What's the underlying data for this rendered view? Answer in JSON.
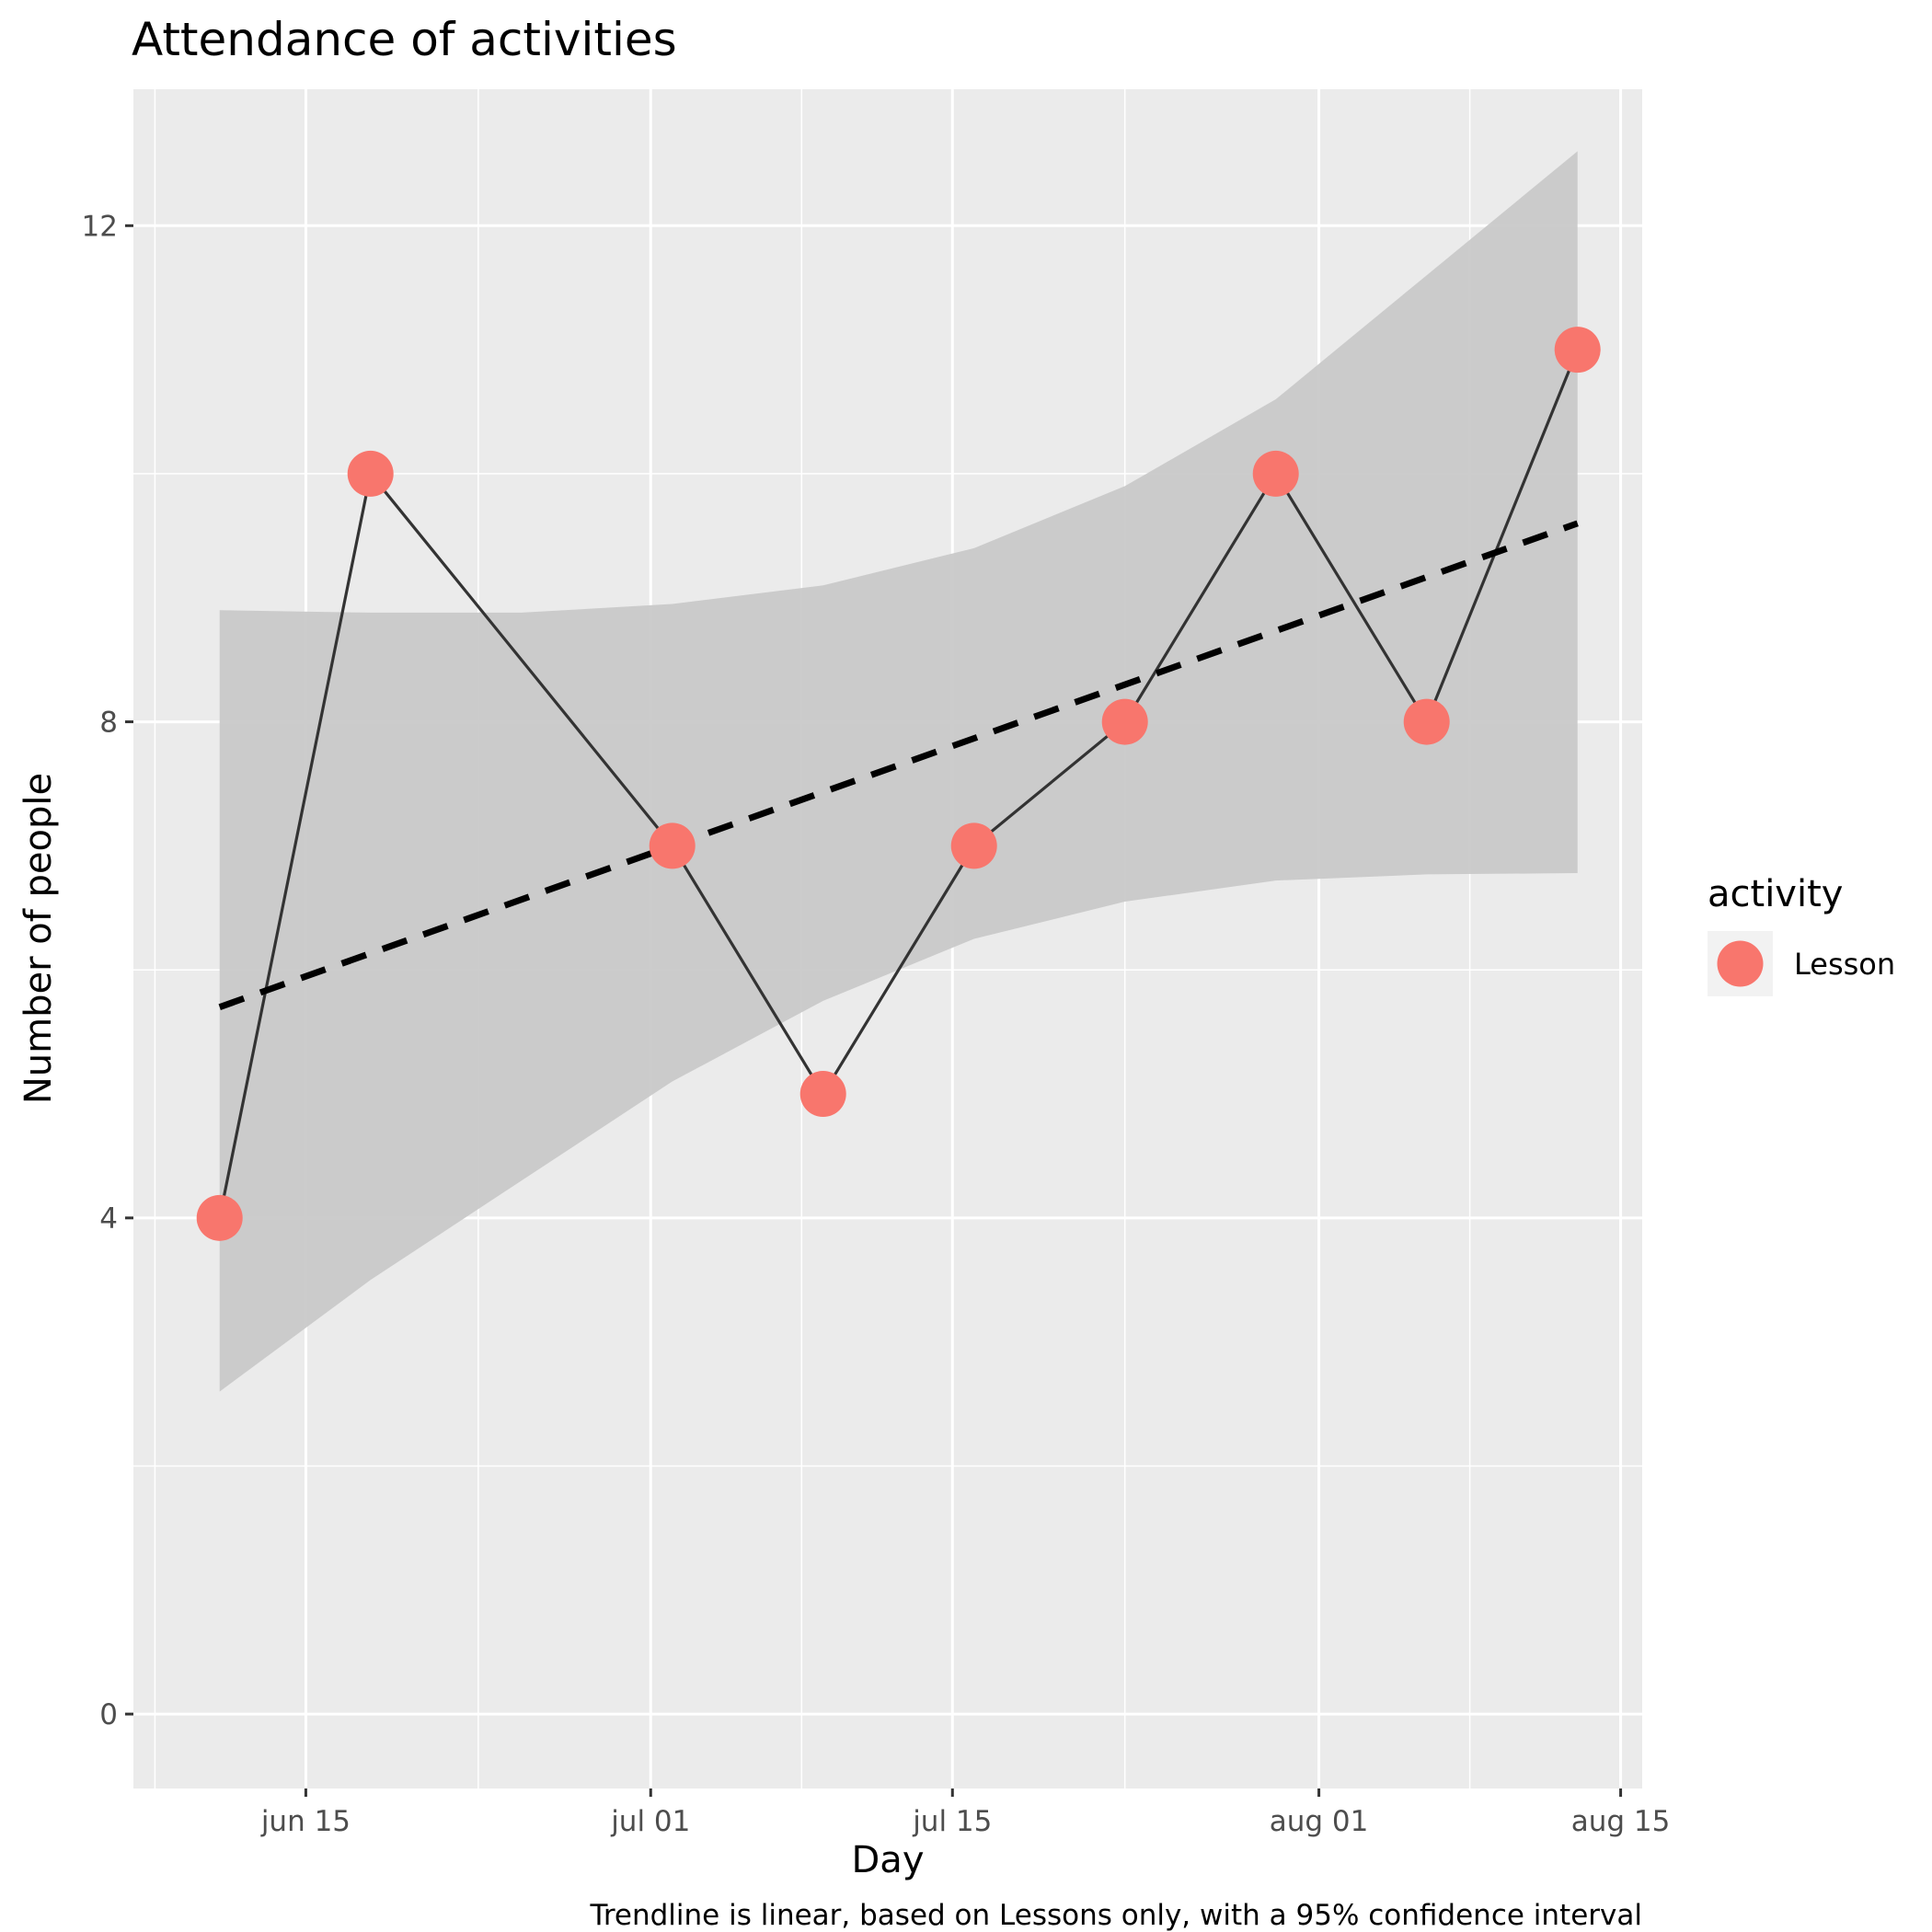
{
  "chart_data": {
    "type": "line",
    "title": "Attendance of activities",
    "xlabel": "Day",
    "ylabel": "Number of people",
    "caption": "Trendline is linear, based on Lessons only, with a 95% confidence interval",
    "x_axis": {
      "kind": "date",
      "range": [
        "2021-06-07",
        "2021-08-16"
      ],
      "ticks": [
        {
          "date": "2021-06-15",
          "label": "jun 15"
        },
        {
          "date": "2021-07-01",
          "label": "jul 01"
        },
        {
          "date": "2021-07-15",
          "label": "jul 15"
        },
        {
          "date": "2021-08-01",
          "label": "aug 01"
        },
        {
          "date": "2021-08-15",
          "label": "aug 15"
        }
      ],
      "minor_ticks": [
        "2021-06-08",
        "2021-06-23",
        "2021-07-08",
        "2021-07-23",
        "2021-08-08"
      ]
    },
    "y_axis": {
      "ylim": [
        -0.6,
        13.1
      ],
      "ticks": [
        0,
        4,
        8,
        12
      ],
      "minor_ticks": [
        2,
        6,
        10
      ]
    },
    "grid": true,
    "legend": {
      "title": "activity",
      "position": "right",
      "entries": [
        {
          "label": "Lesson",
          "color": "#F8766D"
        }
      ]
    },
    "series": [
      {
        "name": "Lesson",
        "color": "#F8766D",
        "points": [
          {
            "x": "2021-06-11",
            "y": 4
          },
          {
            "x": "2021-06-18",
            "y": 10
          },
          {
            "x": "2021-07-02",
            "y": 7
          },
          {
            "x": "2021-07-09",
            "y": 5
          },
          {
            "x": "2021-07-16",
            "y": 7
          },
          {
            "x": "2021-07-23",
            "y": 8
          },
          {
            "x": "2021-07-30",
            "y": 10
          },
          {
            "x": "2021-08-06",
            "y": 8
          },
          {
            "x": "2021-08-13",
            "y": 11
          }
        ]
      }
    ],
    "trendline": {
      "method": "linear",
      "style": "dashed",
      "color": "#000000",
      "points": [
        {
          "x": "2021-06-11",
          "y": 5.7
        },
        {
          "x": "2021-08-13",
          "y": 9.6
        }
      ]
    },
    "confidence_band": {
      "level": 0.95,
      "color": "#C9C9C9",
      "upper": [
        {
          "x": "2021-06-11",
          "y": 8.9
        },
        {
          "x": "2021-06-18",
          "y": 8.88
        },
        {
          "x": "2021-06-25",
          "y": 8.88
        },
        {
          "x": "2021-07-02",
          "y": 8.95
        },
        {
          "x": "2021-07-09",
          "y": 9.1
        },
        {
          "x": "2021-07-16",
          "y": 9.4
        },
        {
          "x": "2021-07-23",
          "y": 9.9
        },
        {
          "x": "2021-07-30",
          "y": 10.6
        },
        {
          "x": "2021-08-06",
          "y": 11.6
        },
        {
          "x": "2021-08-13",
          "y": 12.6
        }
      ],
      "lower": [
        {
          "x": "2021-06-11",
          "y": 2.6
        },
        {
          "x": "2021-06-18",
          "y": 3.5
        },
        {
          "x": "2021-06-25",
          "y": 4.3
        },
        {
          "x": "2021-07-02",
          "y": 5.1
        },
        {
          "x": "2021-07-09",
          "y": 5.75
        },
        {
          "x": "2021-07-16",
          "y": 6.25
        },
        {
          "x": "2021-07-23",
          "y": 6.55
        },
        {
          "x": "2021-07-30",
          "y": 6.72
        },
        {
          "x": "2021-08-06",
          "y": 6.77
        },
        {
          "x": "2021-08-13",
          "y": 6.78
        }
      ]
    }
  }
}
